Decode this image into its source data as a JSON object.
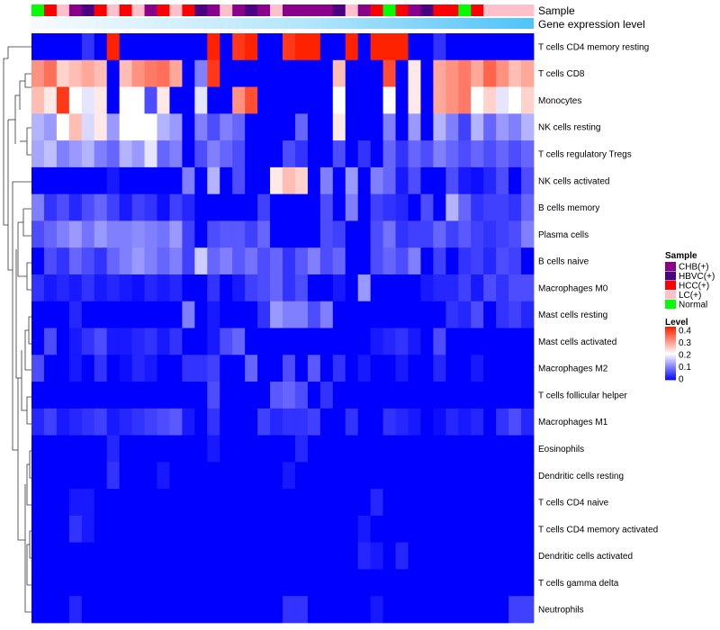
{
  "chart_data": {
    "type": "heatmap",
    "annotation_labels": {
      "sample": "Sample",
      "gene_expression": "Gene expression level"
    },
    "rows": [
      "T cells CD4 memory resting",
      "T cells CD8",
      "Monocytes",
      "NK cells resting",
      "T cells regulatory  Tregs",
      "NK cells activated",
      "B cells memory",
      "Plasma cells",
      "B cells naive",
      "Macrophages M0",
      "Mast cells resting",
      "Mast cells activated",
      "Macrophages M2",
      "T cells follicular helper",
      "Macrophages M1",
      "Eosinophils",
      "Dendritic cells resting",
      "T cells CD4 naive",
      "T cells CD4 memory activated",
      "Dendritic cells activated",
      "T cells gamma delta",
      "Neutrophils"
    ],
    "column_groups": [
      "Normal",
      "HCC(+)",
      "LC(+)",
      "CHB(+)",
      "HBVC(+)",
      "HCC(+)",
      "LC(+)",
      "HCC(+)",
      "LC(+)",
      "CHB(+)",
      "HCC(+)",
      "LC(+)",
      "HCC(+)",
      "HBVC(+)",
      "CHB(+)",
      "LC(+)",
      "CHB(+)",
      "HBVC(+)",
      "CHB(+)",
      "LC(+)",
      "CHB(+)",
      "CHB(+)",
      "CHB(+)",
      "CHB(+)",
      "HBVC(+)",
      "LC(+)",
      "CHB(+)",
      "HCC(+)",
      "Normal",
      "HCC(+)",
      "CHB(+)",
      "HBVC(+)",
      "HCC(+)",
      "HCC(+)",
      "Normal",
      "HCC(+)",
      "LC(+)",
      "LC(+)",
      "LC(+)",
      "LC(+)"
    ],
    "values": [
      [
        0.0,
        0.0,
        0.0,
        0.0,
        0.04,
        0.0,
        0.4,
        0.0,
        0.0,
        0.0,
        0.0,
        0.0,
        0.0,
        0.0,
        0.4,
        0.0,
        0.38,
        0.4,
        0.0,
        0.0,
        0.38,
        0.4,
        0.4,
        0.0,
        0.0,
        0.4,
        0.0,
        0.4,
        0.4,
        0.4,
        0.0,
        0.0,
        0.04,
        0.0,
        0.0,
        0.0,
        0.0,
        0.0,
        0.0,
        0.0
      ],
      [
        0.3,
        0.33,
        0.24,
        0.26,
        0.28,
        0.26,
        0.0,
        0.26,
        0.3,
        0.32,
        0.33,
        0.28,
        0.0,
        0.1,
        0.38,
        0.0,
        0.0,
        0.0,
        0.0,
        0.0,
        0.0,
        0.0,
        0.0,
        0.0,
        0.26,
        0.0,
        0.0,
        0.0,
        0.36,
        0.0,
        0.22,
        0.0,
        0.28,
        0.3,
        0.32,
        0.28,
        0.34,
        0.3,
        0.26,
        0.28
      ],
      [
        0.26,
        0.22,
        0.38,
        0.2,
        0.18,
        0.22,
        0.0,
        0.2,
        0.2,
        0.06,
        0.22,
        0.0,
        0.0,
        0.18,
        0.0,
        0.0,
        0.3,
        0.36,
        0.0,
        0.0,
        0.0,
        0.0,
        0.0,
        0.0,
        0.2,
        0.0,
        0.0,
        0.0,
        0.2,
        0.0,
        0.22,
        0.0,
        0.28,
        0.3,
        0.32,
        0.2,
        0.24,
        0.18,
        0.2,
        0.24
      ],
      [
        0.14,
        0.12,
        0.2,
        0.26,
        0.17,
        0.22,
        0.12,
        0.2,
        0.2,
        0.2,
        0.14,
        0.12,
        0.0,
        0.1,
        0.06,
        0.1,
        0.08,
        0.0,
        0.0,
        0.0,
        0.0,
        0.08,
        0.0,
        0.0,
        0.22,
        0.0,
        0.0,
        0.0,
        0.1,
        0.0,
        0.12,
        0.0,
        0.14,
        0.1,
        0.05,
        0.14,
        0.08,
        0.12,
        0.1,
        0.14
      ],
      [
        0.13,
        0.15,
        0.1,
        0.12,
        0.14,
        0.1,
        0.08,
        0.14,
        0.12,
        0.18,
        0.08,
        0.1,
        0.0,
        0.06,
        0.1,
        0.08,
        0.06,
        0.0,
        0.0,
        0.0,
        0.06,
        0.04,
        0.0,
        0.0,
        0.06,
        0.0,
        0.04,
        0.0,
        0.08,
        0.04,
        0.08,
        0.06,
        0.1,
        0.08,
        0.06,
        0.08,
        0.06,
        0.08,
        0.06,
        0.08
      ],
      [
        0.0,
        0.0,
        0.0,
        0.0,
        0.0,
        0.0,
        0.02,
        0.0,
        0.0,
        0.0,
        0.0,
        0.0,
        0.1,
        0.0,
        0.14,
        0.0,
        0.06,
        0.0,
        0.0,
        0.22,
        0.26,
        0.24,
        0.0,
        0.1,
        0.0,
        0.12,
        0.0,
        0.1,
        0.08,
        0.02,
        0.06,
        0.0,
        0.0,
        0.06,
        0.02,
        0.01,
        0.03,
        0.06,
        0.0,
        0.06
      ],
      [
        0.1,
        0.04,
        0.06,
        0.03,
        0.06,
        0.08,
        0.05,
        0.02,
        0.05,
        0.04,
        0.01,
        0.05,
        0.03,
        0.0,
        0.0,
        0.0,
        0.0,
        0.0,
        0.05,
        0.0,
        0.0,
        0.0,
        0.0,
        0.06,
        0.0,
        0.1,
        0.0,
        0.05,
        0.04,
        0.03,
        0.0,
        0.06,
        0.0,
        0.14,
        0.08,
        0.04,
        0.05,
        0.05,
        0.04,
        0.08
      ],
      [
        0.06,
        0.08,
        0.1,
        0.12,
        0.09,
        0.12,
        0.1,
        0.1,
        0.11,
        0.1,
        0.09,
        0.12,
        0.05,
        0.0,
        0.06,
        0.07,
        0.07,
        0.05,
        0.08,
        0.0,
        0.0,
        0.0,
        0.0,
        0.06,
        0.05,
        0.0,
        0.0,
        0.06,
        0.09,
        0.04,
        0.05,
        0.05,
        0.08,
        0.05,
        0.07,
        0.05,
        0.04,
        0.05,
        0.06,
        0.1
      ],
      [
        0.0,
        0.06,
        0.04,
        0.08,
        0.06,
        0.04,
        0.08,
        0.1,
        0.12,
        0.1,
        0.08,
        0.1,
        0.05,
        0.16,
        0.08,
        0.1,
        0.07,
        0.09,
        0.06,
        0.08,
        0.04,
        0.07,
        0.1,
        0.06,
        0.08,
        0.0,
        0.0,
        0.06,
        0.08,
        0.06,
        0.1,
        0.0,
        0.05,
        0.0,
        0.04,
        0.05,
        0.03,
        0.06,
        0.05,
        0.0
      ],
      [
        0.04,
        0.02,
        0.03,
        0.02,
        0.04,
        0.02,
        0.03,
        0.02,
        0.01,
        0.03,
        0.02,
        0.03,
        0.0,
        0.0,
        0.04,
        0.0,
        0.02,
        0.05,
        0.06,
        0.08,
        0.04,
        0.06,
        0.0,
        0.0,
        0.02,
        0.0,
        0.12,
        0.0,
        0.0,
        0.0,
        0.0,
        0.02,
        0.03,
        0.03,
        0.05,
        0.02,
        0.06,
        0.04,
        0.06,
        0.06
      ],
      [
        0.0,
        0.0,
        0.0,
        0.03,
        0.0,
        0.0,
        0.0,
        0.0,
        0.0,
        0.0,
        0.0,
        0.0,
        0.1,
        0.0,
        0.02,
        0.0,
        0.0,
        0.0,
        0.04,
        0.12,
        0.1,
        0.1,
        0.06,
        0.1,
        0.0,
        0.0,
        0.0,
        0.0,
        0.0,
        0.0,
        0.0,
        0.0,
        0.0,
        0.04,
        0.03,
        0.06,
        0.0,
        0.04,
        0.05,
        0.03
      ],
      [
        0.0,
        0.06,
        0.0,
        0.02,
        0.04,
        0.06,
        0.02,
        0.02,
        0.03,
        0.04,
        0.02,
        0.04,
        0.0,
        0.0,
        0.02,
        0.06,
        0.08,
        0.0,
        0.0,
        0.0,
        0.0,
        0.0,
        0.0,
        0.0,
        0.0,
        0.0,
        0.0,
        0.02,
        0.03,
        0.04,
        0.02,
        0.0,
        0.06,
        0.0,
        0.0,
        0.0,
        0.0,
        0.0,
        0.0,
        0.0
      ],
      [
        0.06,
        0.0,
        0.0,
        0.02,
        0.0,
        0.04,
        0.0,
        0.01,
        0.03,
        0.02,
        0.0,
        0.0,
        0.04,
        0.04,
        0.05,
        0.0,
        0.0,
        0.08,
        0.0,
        0.0,
        0.06,
        0.0,
        0.07,
        0.0,
        0.04,
        0.0,
        0.02,
        0.0,
        0.0,
        0.02,
        0.0,
        0.0,
        0.03,
        0.0,
        0.0,
        0.02,
        0.0,
        0.0,
        0.0,
        0.0
      ],
      [
        0.0,
        0.0,
        0.0,
        0.0,
        0.0,
        0.0,
        0.0,
        0.0,
        0.0,
        0.0,
        0.0,
        0.0,
        0.0,
        0.0,
        0.06,
        0.0,
        0.0,
        0.0,
        0.0,
        0.07,
        0.08,
        0.06,
        0.0,
        0.04,
        0.0,
        0.0,
        0.0,
        0.0,
        0.0,
        0.0,
        0.0,
        0.0,
        0.0,
        0.0,
        0.0,
        0.0,
        0.0,
        0.0,
        0.0,
        0.0
      ],
      [
        0.03,
        0.05,
        0.02,
        0.03,
        0.04,
        0.05,
        0.02,
        0.03,
        0.04,
        0.05,
        0.06,
        0.07,
        0.02,
        0.0,
        0.04,
        0.0,
        0.0,
        0.0,
        0.05,
        0.03,
        0.04,
        0.04,
        0.05,
        0.0,
        0.0,
        0.04,
        0.0,
        0.0,
        0.04,
        0.03,
        0.02,
        0.0,
        0.01,
        0.03,
        0.02,
        0.03,
        0.0,
        0.04,
        0.06,
        0.03
      ],
      [
        0.0,
        0.0,
        0.0,
        0.0,
        0.0,
        0.0,
        0.03,
        0.0,
        0.0,
        0.0,
        0.0,
        0.0,
        0.0,
        0.0,
        0.02,
        0.0,
        0.0,
        0.0,
        0.0,
        0.0,
        0.0,
        0.03,
        0.0,
        0.0,
        0.0,
        0.0,
        0.0,
        0.0,
        0.0,
        0.0,
        0.0,
        0.0,
        0.0,
        0.0,
        0.0,
        0.0,
        0.0,
        0.0,
        0.0,
        0.0
      ],
      [
        0.0,
        0.0,
        0.0,
        0.0,
        0.0,
        0.0,
        0.04,
        0.0,
        0.0,
        0.0,
        0.02,
        0.0,
        0.0,
        0.0,
        0.0,
        0.0,
        0.0,
        0.0,
        0.0,
        0.0,
        0.02,
        0.0,
        0.0,
        0.0,
        0.0,
        0.0,
        0.0,
        0.0,
        0.0,
        0.0,
        0.0,
        0.0,
        0.0,
        0.0,
        0.0,
        0.0,
        0.0,
        0.0,
        0.0,
        0.0
      ],
      [
        0.0,
        0.0,
        0.0,
        0.02,
        0.02,
        0.0,
        0.0,
        0.0,
        0.0,
        0.0,
        0.0,
        0.0,
        0.0,
        0.0,
        0.0,
        0.0,
        0.0,
        0.0,
        0.0,
        0.0,
        0.0,
        0.0,
        0.0,
        0.0,
        0.0,
        0.0,
        0.0,
        0.03,
        0.0,
        0.0,
        0.0,
        0.0,
        0.0,
        0.0,
        0.0,
        0.0,
        0.0,
        0.0,
        0.0,
        0.0
      ],
      [
        0.0,
        0.0,
        0.0,
        0.04,
        0.02,
        0.0,
        0.0,
        0.0,
        0.0,
        0.0,
        0.0,
        0.0,
        0.0,
        0.0,
        0.0,
        0.0,
        0.0,
        0.0,
        0.0,
        0.0,
        0.0,
        0.0,
        0.0,
        0.0,
        0.0,
        0.0,
        0.02,
        0.0,
        0.0,
        0.0,
        0.0,
        0.0,
        0.0,
        0.0,
        0.0,
        0.0,
        0.0,
        0.0,
        0.0,
        0.0
      ],
      [
        0.0,
        0.0,
        0.0,
        0.0,
        0.0,
        0.0,
        0.0,
        0.0,
        0.0,
        0.0,
        0.0,
        0.0,
        0.0,
        0.0,
        0.0,
        0.0,
        0.0,
        0.0,
        0.0,
        0.0,
        0.0,
        0.0,
        0.0,
        0.0,
        0.0,
        0.0,
        0.03,
        0.02,
        0.0,
        0.03,
        0.0,
        0.0,
        0.0,
        0.0,
        0.0,
        0.0,
        0.0,
        0.0,
        0.0,
        0.0
      ],
      [
        0.0,
        0.0,
        0.0,
        0.0,
        0.0,
        0.0,
        0.0,
        0.0,
        0.0,
        0.0,
        0.0,
        0.0,
        0.0,
        0.0,
        0.0,
        0.0,
        0.0,
        0.0,
        0.0,
        0.0,
        0.0,
        0.0,
        0.0,
        0.0,
        0.0,
        0.0,
        0.0,
        0.0,
        0.0,
        0.0,
        0.0,
        0.0,
        0.0,
        0.0,
        0.0,
        0.0,
        0.0,
        0.0,
        0.0,
        0.0
      ],
      [
        0.0,
        0.0,
        0.0,
        0.03,
        0.0,
        0.0,
        0.0,
        0.0,
        0.0,
        0.0,
        0.0,
        0.0,
        0.0,
        0.0,
        0.0,
        0.0,
        0.0,
        0.0,
        0.0,
        0.0,
        0.04,
        0.04,
        0.0,
        0.0,
        0.0,
        0.0,
        0.0,
        0.02,
        0.0,
        0.0,
        0.0,
        0.0,
        0.0,
        0.0,
        0.0,
        0.0,
        0.0,
        0.0,
        0.05,
        0.05
      ]
    ],
    "value_range": [
      0,
      0.4
    ],
    "color_scale": {
      "low": "#0000ff",
      "mid": "#ffffff",
      "high": "#ff2200"
    },
    "legend": {
      "sample_title": "Sample",
      "sample_entries": [
        {
          "label": "CHB(+)",
          "color": "#8b008b"
        },
        {
          "label": "HBVC(+)",
          "color": "#4b0082"
        },
        {
          "label": "HCC(+)",
          "color": "#ff0000"
        },
        {
          "label": "LC(+)",
          "color": "#ffc0cb"
        },
        {
          "label": "Normal",
          "color": "#00ff00"
        }
      ],
      "level_title": "Level",
      "level_ticks": [
        0.4,
        0.3,
        0.2,
        0.1,
        0
      ],
      "placement": "right"
    },
    "gene_expression_color": "#4fc3f7",
    "title": "",
    "xlabel": "",
    "ylabel": ""
  }
}
